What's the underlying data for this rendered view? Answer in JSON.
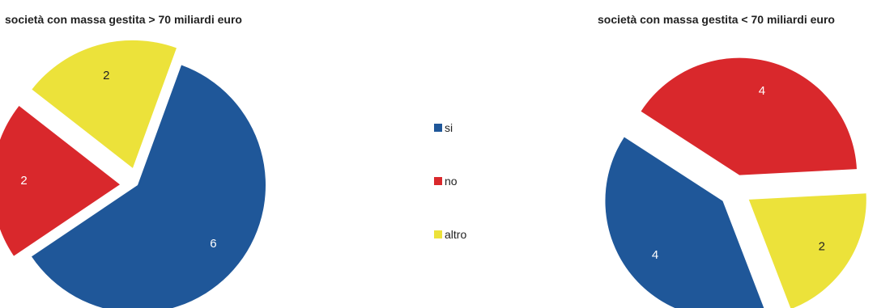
{
  "colors": {
    "si": "#1f5799",
    "no": "#d9282c",
    "altro": "#ece23a"
  },
  "legend": [
    {
      "key": "si",
      "label": "si"
    },
    {
      "key": "no",
      "label": "no"
    },
    {
      "key": "altro",
      "label": "altro"
    }
  ],
  "chart_data": [
    {
      "type": "pie",
      "title": "società con massa gestita > 70 miliardi euro",
      "slices": [
        {
          "category": "si",
          "value": 6
        },
        {
          "category": "no",
          "value": 2
        },
        {
          "category": "altro",
          "value": 2
        }
      ]
    },
    {
      "type": "pie",
      "title": "società con massa gestita < 70 miliardi euro",
      "slices": [
        {
          "category": "si",
          "value": 4
        },
        {
          "category": "no",
          "value": 4
        },
        {
          "category": "altro",
          "value": 2
        }
      ]
    }
  ]
}
